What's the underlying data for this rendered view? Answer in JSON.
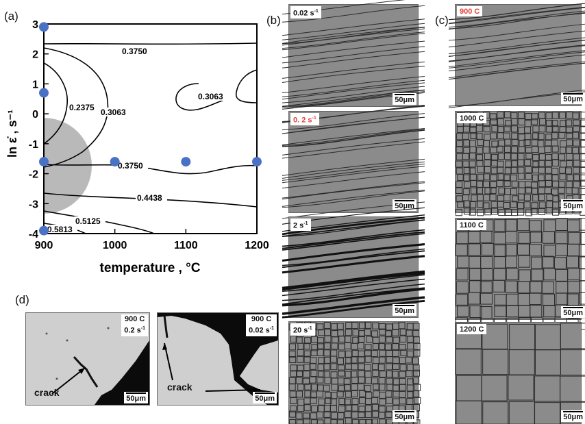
{
  "panels": {
    "a": "(a)",
    "b": "(b)",
    "c": "(c)",
    "d": "(d)"
  },
  "chart_data": {
    "type": "contour",
    "xlabel": "temperature , °C",
    "ylabel": "ln ε̇ , s⁻¹",
    "xlim": [
      900,
      1200
    ],
    "ylim": [
      -4,
      3
    ],
    "x_ticks": [
      "900",
      "1000",
      "1100",
      "1200"
    ],
    "y_ticks": [
      "-4",
      "-3",
      "-2",
      "-1",
      "0",
      "1",
      "2",
      "3"
    ],
    "contour_levels": [
      "0.2375",
      "0.3063",
      "0.3750",
      "0.3063",
      "0.3750",
      "0.4438",
      "0.5125",
      "0.5813"
    ],
    "points": [
      {
        "x": 900,
        "y": 2.9
      },
      {
        "x": 900,
        "y": 0.7
      },
      {
        "x": 900,
        "y": -1.6
      },
      {
        "x": 1000,
        "y": -1.6
      },
      {
        "x": 1100,
        "y": -1.6
      },
      {
        "x": 1200,
        "y": -1.6
      },
      {
        "x": 900,
        "y": -3.9
      }
    ],
    "instability_region": {
      "center_x": 900,
      "center_y": -1.6,
      "note": "shaded"
    },
    "colors": {
      "points": "#4a72c4",
      "region": "#b9b9b9",
      "contours": "#000000"
    }
  },
  "strain_rate_images": [
    {
      "label": "0.02 s",
      "sup": "-1",
      "highlight": false,
      "scale": "50μm"
    },
    {
      "label": "0. 2 s",
      "sup": "-1",
      "highlight": true,
      "scale": "50μm"
    },
    {
      "label": "2 s",
      "sup": "-1",
      "highlight": false,
      "scale": "50μm"
    },
    {
      "label": "20 s",
      "sup": "-1",
      "highlight": false,
      "scale": "50μm"
    }
  ],
  "temperature_images": [
    {
      "label": "900 C",
      "highlight": true,
      "scale": "50μm"
    },
    {
      "label": "1000 C",
      "highlight": false,
      "scale": "50μm"
    },
    {
      "label": "1100 C",
      "highlight": false,
      "scale": "50μm"
    },
    {
      "label": "1200 C",
      "highlight": false,
      "scale": "50μm"
    }
  ],
  "crack_images": [
    {
      "temp": "900 C",
      "rate": "0.2 s",
      "sup": "-1",
      "crack": "crack",
      "scale": "50μm"
    },
    {
      "temp": "900 C",
      "rate": "0.02 s",
      "sup": "-1",
      "crack": "crack",
      "scale": "50μm"
    }
  ],
  "colors": {
    "highlight_text": "#e0443a"
  }
}
